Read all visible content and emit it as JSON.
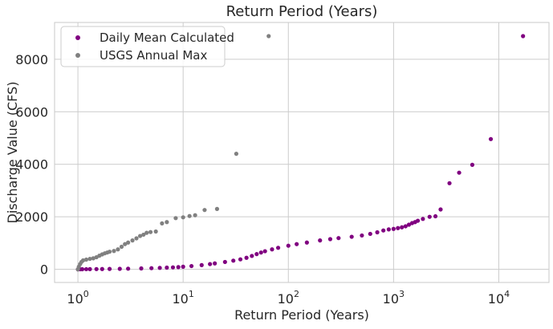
{
  "chart_data": {
    "type": "scatter",
    "title": "Return Period (Years)",
    "xlabel": "Return Period (Years)",
    "ylabel": "Discharge Value (CFS)",
    "xscale": "log",
    "xlim": [
      0.6,
      30000
    ],
    "ylim": [
      -500,
      9400
    ],
    "xticks": [
      {
        "value": 1,
        "base": "10",
        "exp": "0"
      },
      {
        "value": 10,
        "base": "10",
        "exp": "1"
      },
      {
        "value": 100,
        "base": "10",
        "exp": "2"
      },
      {
        "value": 1000,
        "base": "10",
        "exp": "3"
      },
      {
        "value": 10000,
        "base": "10",
        "exp": "4"
      }
    ],
    "yticks": [
      0,
      2000,
      4000,
      6000,
      8000
    ],
    "grid": true,
    "legend_position": "top-left",
    "series": [
      {
        "name": "Daily Mean Calculated",
        "color": "#800080",
        "points": [
          [
            1.0,
            0
          ],
          [
            1.05,
            2
          ],
          [
            1.1,
            4
          ],
          [
            1.2,
            6
          ],
          [
            1.3,
            8
          ],
          [
            1.5,
            10
          ],
          [
            1.7,
            12
          ],
          [
            2.0,
            15
          ],
          [
            2.5,
            20
          ],
          [
            3.0,
            25
          ],
          [
            4.0,
            35
          ],
          [
            5.0,
            45
          ],
          [
            6.0,
            55
          ],
          [
            7.0,
            65
          ],
          [
            8.0,
            75
          ],
          [
            9.0,
            85
          ],
          [
            10,
            100
          ],
          [
            12,
            125
          ],
          [
            15,
            160
          ],
          [
            18,
            200
          ],
          [
            20,
            225
          ],
          [
            25,
            280
          ],
          [
            30,
            330
          ],
          [
            35,
            380
          ],
          [
            40,
            440
          ],
          [
            45,
            510
          ],
          [
            50,
            580
          ],
          [
            55,
            640
          ],
          [
            60,
            690
          ],
          [
            70,
            760
          ],
          [
            80,
            820
          ],
          [
            100,
            900
          ],
          [
            120,
            960
          ],
          [
            150,
            1020
          ],
          [
            200,
            1100
          ],
          [
            250,
            1150
          ],
          [
            300,
            1190
          ],
          [
            400,
            1240
          ],
          [
            500,
            1290
          ],
          [
            600,
            1350
          ],
          [
            700,
            1410
          ],
          [
            800,
            1480
          ],
          [
            900,
            1520
          ],
          [
            1000,
            1540
          ],
          [
            1100,
            1570
          ],
          [
            1200,
            1600
          ],
          [
            1300,
            1640
          ],
          [
            1400,
            1700
          ],
          [
            1500,
            1760
          ],
          [
            1600,
            1800
          ],
          [
            1700,
            1850
          ],
          [
            1900,
            1920
          ],
          [
            2200,
            2000
          ],
          [
            2500,
            2020
          ],
          [
            2800,
            2280
          ],
          [
            3400,
            3280
          ],
          [
            4200,
            3680
          ],
          [
            5600,
            3980
          ],
          [
            8400,
            4960
          ],
          [
            17000,
            8880
          ]
        ]
      },
      {
        "name": "USGS Annual Max",
        "color": "#808080",
        "points": [
          [
            1.0,
            0
          ],
          [
            1.02,
            100
          ],
          [
            1.05,
            200
          ],
          [
            1.08,
            280
          ],
          [
            1.12,
            340
          ],
          [
            1.2,
            370
          ],
          [
            1.3,
            400
          ],
          [
            1.4,
            420
          ],
          [
            1.5,
            460
          ],
          [
            1.6,
            520
          ],
          [
            1.7,
            570
          ],
          [
            1.8,
            610
          ],
          [
            1.9,
            640
          ],
          [
            2.0,
            670
          ],
          [
            2.2,
            700
          ],
          [
            2.4,
            760
          ],
          [
            2.6,
            860
          ],
          [
            2.8,
            960
          ],
          [
            3.0,
            1020
          ],
          [
            3.3,
            1100
          ],
          [
            3.6,
            1180
          ],
          [
            3.9,
            1270
          ],
          [
            4.2,
            1320
          ],
          [
            4.5,
            1390
          ],
          [
            4.9,
            1420
          ],
          [
            5.5,
            1440
          ],
          [
            6.3,
            1750
          ],
          [
            7.0,
            1800
          ],
          [
            8.5,
            1950
          ],
          [
            10,
            1980
          ],
          [
            11.5,
            2030
          ],
          [
            13,
            2060
          ],
          [
            16,
            2260
          ],
          [
            21,
            2300
          ],
          [
            32,
            4400
          ],
          [
            65,
            8880
          ]
        ]
      }
    ]
  }
}
